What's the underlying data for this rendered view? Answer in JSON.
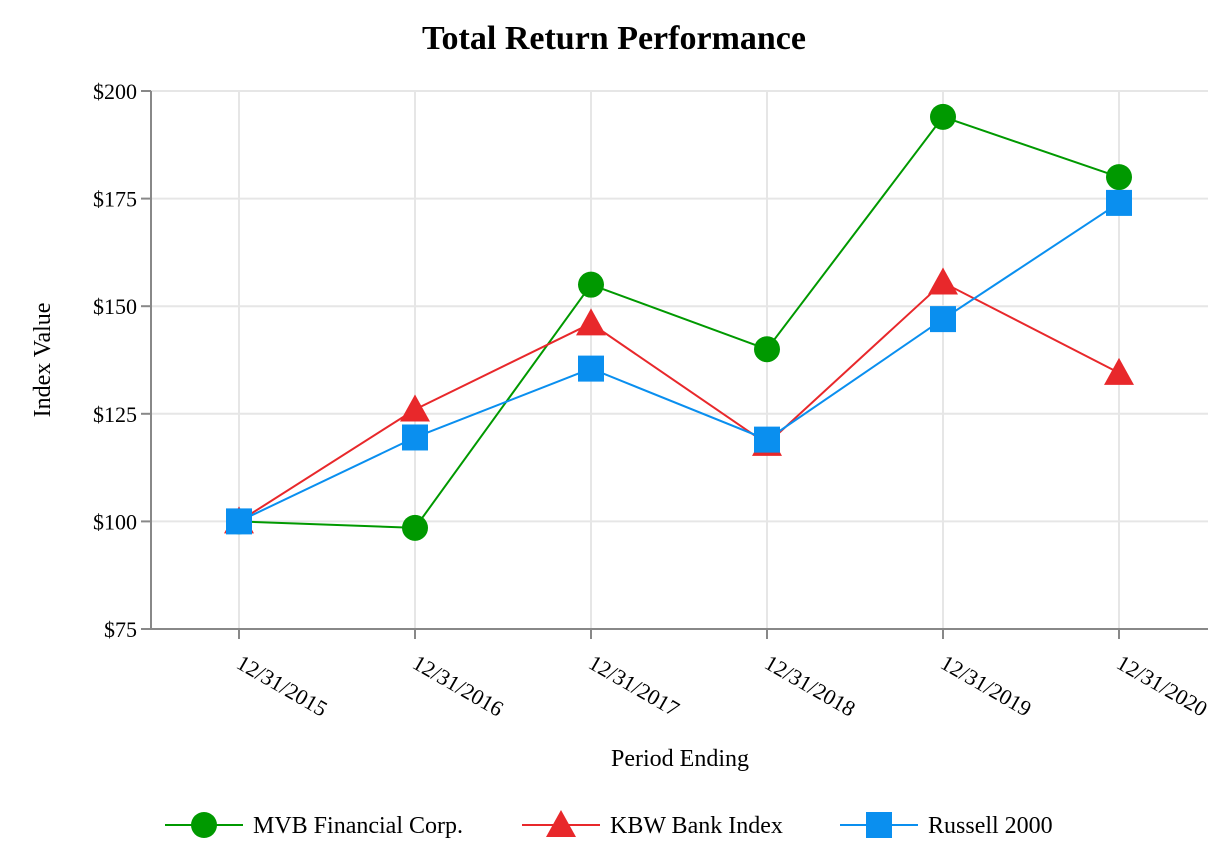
{
  "chart_data": {
    "type": "line",
    "title": "Total Return Performance",
    "xlabel": "Period Ending",
    "ylabel": "Index Value",
    "ylim": [
      75,
      200
    ],
    "ytick_values": [
      75,
      100,
      125,
      150,
      175,
      200
    ],
    "ytick_labels": [
      "$75",
      "$100",
      "$125",
      "$150",
      "$175",
      "$200"
    ],
    "categories": [
      "12/31/2015",
      "12/31/2016",
      "12/31/2017",
      "12/31/2018",
      "12/31/2019",
      "12/31/2020"
    ],
    "grid": true,
    "legend_position": "bottom",
    "series": [
      {
        "name": "MVB Financial Corp.",
        "color": "#009900",
        "marker": "circle",
        "values": [
          100.0,
          98.5,
          155.0,
          140.0,
          194.0,
          180.0
        ]
      },
      {
        "name": "KBW Bank Index",
        "color": "#e8282b",
        "marker": "triangle",
        "values": [
          100.0,
          126.0,
          146.0,
          118.0,
          155.5,
          134.5
        ]
      },
      {
        "name": "Russell 2000",
        "color": "#0a8fef",
        "marker": "square",
        "values": [
          100.0,
          119.5,
          135.5,
          119.0,
          147.0,
          174.0
        ]
      }
    ]
  }
}
